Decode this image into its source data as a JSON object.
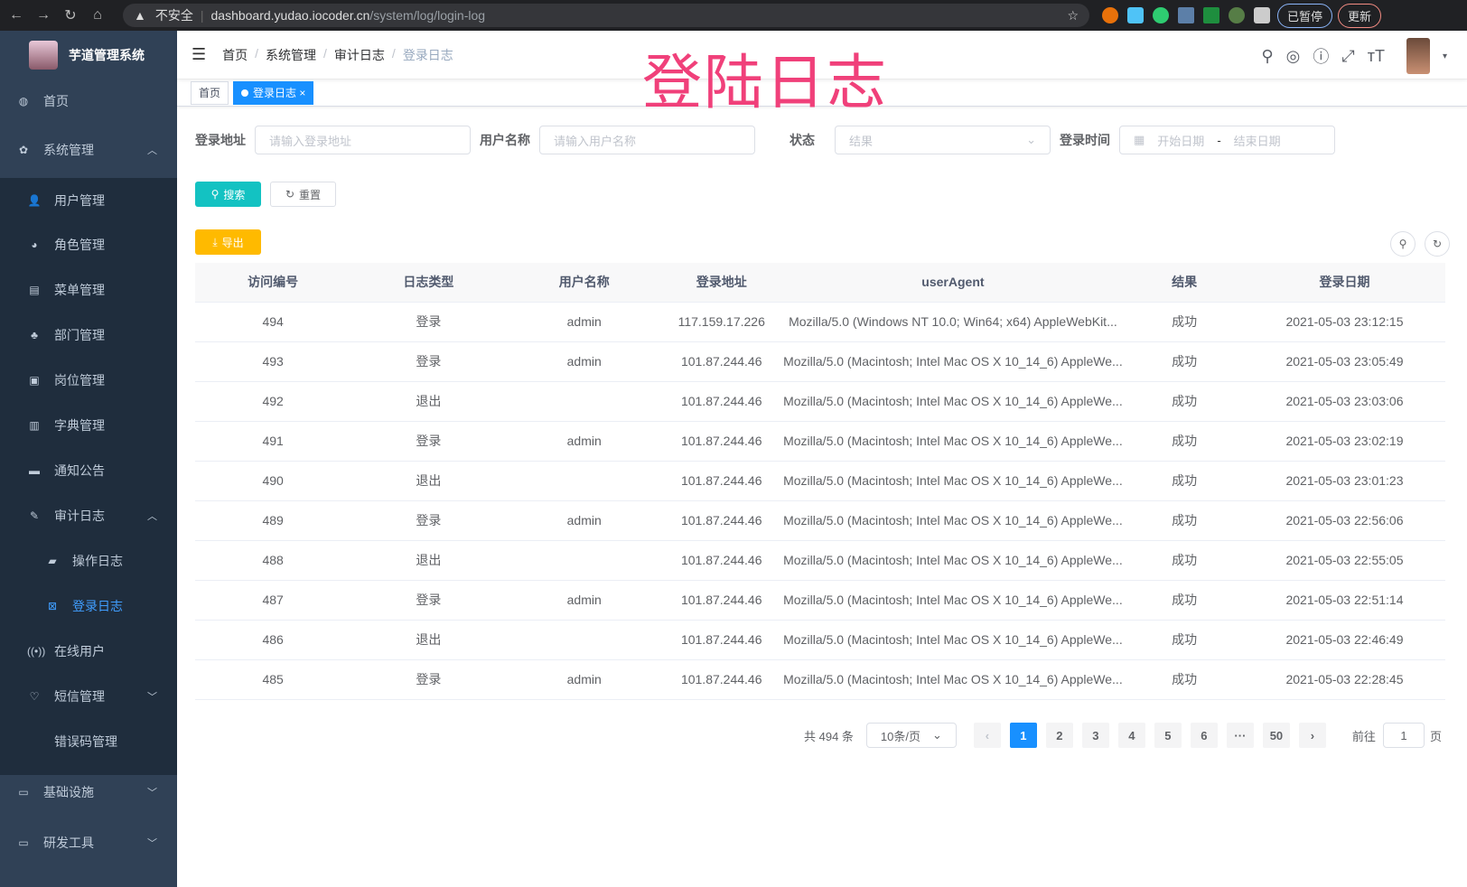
{
  "browser": {
    "insecure": "不安全",
    "url_host": "dashboard.yudao.iocoder.cn",
    "url_path": "/system/log/login-log",
    "paused": "已暂停",
    "update": "更新"
  },
  "overlay_title": "登陆日志",
  "sidebar": {
    "logo": "芋道管理系统",
    "items": [
      {
        "label": "首页",
        "icon": "dashboard-icon"
      },
      {
        "label": "系统管理",
        "icon": "gear-icon"
      },
      {
        "label": "用户管理",
        "icon": "user-icon"
      },
      {
        "label": "角色管理",
        "icon": "role-icon"
      },
      {
        "label": "菜单管理",
        "icon": "menu-icon"
      },
      {
        "label": "部门管理",
        "icon": "tree-icon"
      },
      {
        "label": "岗位管理",
        "icon": "post-icon"
      },
      {
        "label": "字典管理",
        "icon": "dict-icon"
      },
      {
        "label": "通知公告",
        "icon": "message-icon"
      },
      {
        "label": "审计日志",
        "icon": "edit-icon"
      },
      {
        "label": "操作日志",
        "icon": "form-icon"
      },
      {
        "label": "登录日志",
        "icon": "logininfor-icon"
      },
      {
        "label": "在线用户",
        "icon": "online-icon"
      },
      {
        "label": "短信管理",
        "icon": "sms-icon"
      },
      {
        "label": "错误码管理",
        "icon": "code-icon"
      },
      {
        "label": "基础设施",
        "icon": "monitor-icon"
      },
      {
        "label": "研发工具",
        "icon": "tool-icon"
      }
    ]
  },
  "breadcrumb": [
    "首页",
    "系统管理",
    "审计日志",
    "登录日志"
  ],
  "tags": [
    "首页",
    "登录日志"
  ],
  "filters": {
    "addr_label": "登录地址",
    "addr_ph": "请输入登录地址",
    "user_label": "用户名称",
    "user_ph": "请输入用户名称",
    "status_label": "状态",
    "status_ph": "结果",
    "time_label": "登录时间",
    "start_ph": "开始日期",
    "dash": "-",
    "end_ph": "结束日期"
  },
  "buttons": {
    "search": "搜索",
    "reset": "重置",
    "export": "导出"
  },
  "table": {
    "headers": [
      "访问编号",
      "日志类型",
      "用户名称",
      "登录地址",
      "userAgent",
      "结果",
      "登录日期"
    ],
    "rows": [
      [
        "494",
        "登录",
        "admin",
        "117.159.17.226",
        "Mozilla/5.0 (Windows NT 10.0; Win64; x64) AppleWebKit...",
        "成功",
        "2021-05-03 23:12:15"
      ],
      [
        "493",
        "登录",
        "admin",
        "101.87.244.46",
        "Mozilla/5.0 (Macintosh; Intel Mac OS X 10_14_6) AppleWe...",
        "成功",
        "2021-05-03 23:05:49"
      ],
      [
        "492",
        "退出",
        "",
        "101.87.244.46",
        "Mozilla/5.0 (Macintosh; Intel Mac OS X 10_14_6) AppleWe...",
        "成功",
        "2021-05-03 23:03:06"
      ],
      [
        "491",
        "登录",
        "admin",
        "101.87.244.46",
        "Mozilla/5.0 (Macintosh; Intel Mac OS X 10_14_6) AppleWe...",
        "成功",
        "2021-05-03 23:02:19"
      ],
      [
        "490",
        "退出",
        "",
        "101.87.244.46",
        "Mozilla/5.0 (Macintosh; Intel Mac OS X 10_14_6) AppleWe...",
        "成功",
        "2021-05-03 23:01:23"
      ],
      [
        "489",
        "登录",
        "admin",
        "101.87.244.46",
        "Mozilla/5.0 (Macintosh; Intel Mac OS X 10_14_6) AppleWe...",
        "成功",
        "2021-05-03 22:56:06"
      ],
      [
        "488",
        "退出",
        "",
        "101.87.244.46",
        "Mozilla/5.0 (Macintosh; Intel Mac OS X 10_14_6) AppleWe...",
        "成功",
        "2021-05-03 22:55:05"
      ],
      [
        "487",
        "登录",
        "admin",
        "101.87.244.46",
        "Mozilla/5.0 (Macintosh; Intel Mac OS X 10_14_6) AppleWe...",
        "成功",
        "2021-05-03 22:51:14"
      ],
      [
        "486",
        "退出",
        "",
        "101.87.244.46",
        "Mozilla/5.0 (Macintosh; Intel Mac OS X 10_14_6) AppleWe...",
        "成功",
        "2021-05-03 22:46:49"
      ],
      [
        "485",
        "登录",
        "admin",
        "101.87.244.46",
        "Mozilla/5.0 (Macintosh; Intel Mac OS X 10_14_6) AppleWe...",
        "成功",
        "2021-05-03 22:28:45"
      ]
    ]
  },
  "pagination": {
    "total": "共 494 条",
    "page_size": "10条/页",
    "pages": [
      "1",
      "2",
      "3",
      "4",
      "5",
      "6",
      "···",
      "50"
    ],
    "current": "1",
    "goto": "前往",
    "goto_value": "1",
    "page_unit": "页"
  },
  "colors": {
    "sidebar": "#304156",
    "submenu": "#1f2d3d",
    "primary": "#1890ff",
    "search": "#13c2c2",
    "export": "#ffba00",
    "title_overlay": "#f0407a"
  }
}
